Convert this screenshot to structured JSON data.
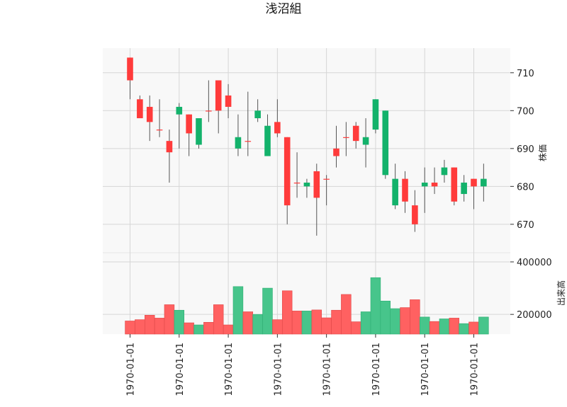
{
  "chart_data": {
    "type": "candlestick",
    "title": "浅沼組",
    "price_ylabel": "株価",
    "volume_ylabel": "出来高",
    "colors": {
      "up": "#ff3b3b",
      "down": "#13b26b",
      "up_volume": "#ff6161",
      "down_volume": "#47c58b",
      "grid": "#d6d6d6",
      "panel_bg": "#f8f8f8"
    },
    "price_ylim": [
      662.5,
      716.5
    ],
    "price_yticks": [
      670,
      680,
      690,
      700,
      710
    ],
    "volume_ylim": [
      125000,
      435000
    ],
    "volume_yticks": [
      200000,
      400000
    ],
    "volume_ytick_labels": [
      "200000",
      "400000"
    ],
    "xtick_indices": [
      0,
      5,
      10,
      15,
      20,
      25,
      30,
      35
    ],
    "xtick_labels": [
      "1970-01-01",
      "1970-01-01",
      "1970-01-01",
      "1970-01-01",
      "1970-01-01",
      "1970-01-01",
      "1970-01-01",
      "1970-01-01"
    ],
    "candles": [
      {
        "open": 708,
        "high": 714,
        "low": 703,
        "close": 714,
        "volume": 175000
      },
      {
        "open": 698,
        "high": 704,
        "low": 698,
        "close": 703,
        "volume": 180000
      },
      {
        "open": 697,
        "high": 704,
        "low": 692,
        "close": 701,
        "volume": 197000
      },
      {
        "open": 695,
        "high": 703,
        "low": 693,
        "close": 695,
        "volume": 186000
      },
      {
        "open": 689,
        "high": 695,
        "low": 681,
        "close": 692,
        "volume": 237000
      },
      {
        "open": 701,
        "high": 702,
        "low": 690,
        "close": 699,
        "volume": 216000
      },
      {
        "open": 694,
        "high": 699,
        "low": 688,
        "close": 699,
        "volume": 168000
      },
      {
        "open": 698,
        "high": 698,
        "low": 690,
        "close": 691,
        "volume": 160000
      },
      {
        "open": 700,
        "high": 708,
        "low": 697,
        "close": 700,
        "volume": 170000
      },
      {
        "open": 700,
        "high": 708,
        "low": 694,
        "close": 708,
        "volume": 237000
      },
      {
        "open": 701,
        "high": 707,
        "low": 698,
        "close": 704,
        "volume": 160000
      },
      {
        "open": 693,
        "high": 699,
        "low": 688,
        "close": 690,
        "volume": 306000
      },
      {
        "open": 692,
        "high": 705,
        "low": 688,
        "close": 692,
        "volume": 210000
      },
      {
        "open": 700,
        "high": 703,
        "low": 697,
        "close": 698,
        "volume": 200000
      },
      {
        "open": 696,
        "high": 699,
        "low": 688,
        "close": 688,
        "volume": 300000
      },
      {
        "open": 694,
        "high": 703,
        "low": 693,
        "close": 697,
        "volume": 180000
      },
      {
        "open": 675,
        "high": 693,
        "low": 670,
        "close": 693,
        "volume": 290000
      },
      {
        "open": 681,
        "high": 689,
        "low": 677,
        "close": 681,
        "volume": 213000
      },
      {
        "open": 681,
        "high": 682,
        "low": 677,
        "close": 680,
        "volume": 213000
      },
      {
        "open": 677,
        "high": 686,
        "low": 667,
        "close": 684,
        "volume": 217000
      },
      {
        "open": 682,
        "high": 683,
        "low": 675,
        "close": 682,
        "volume": 187000
      },
      {
        "open": 688,
        "high": 696,
        "low": 685,
        "close": 690,
        "volume": 216000
      },
      {
        "open": 693,
        "high": 697,
        "low": 688,
        "close": 693,
        "volume": 276000
      },
      {
        "open": 692,
        "high": 697,
        "low": 690,
        "close": 696,
        "volume": 172000
      },
      {
        "open": 693,
        "high": 698,
        "low": 685,
        "close": 691,
        "volume": 210000
      },
      {
        "open": 703,
        "high": 703,
        "low": 694,
        "close": 695,
        "volume": 340000
      },
      {
        "open": 700,
        "high": 700,
        "low": 682,
        "close": 683,
        "volume": 251000
      },
      {
        "open": 682,
        "high": 686,
        "low": 674,
        "close": 675,
        "volume": 222000
      },
      {
        "open": 676,
        "high": 684,
        "low": 673,
        "close": 682,
        "volume": 226000
      },
      {
        "open": 670,
        "high": 679,
        "low": 668,
        "close": 675,
        "volume": 256000
      },
      {
        "open": 681,
        "high": 685,
        "low": 673,
        "close": 680,
        "volume": 190000
      },
      {
        "open": 680,
        "high": 685,
        "low": 678,
        "close": 681,
        "volume": 173000
      },
      {
        "open": 685,
        "high": 687,
        "low": 681,
        "close": 683,
        "volume": 183000
      },
      {
        "open": 676,
        "high": 685,
        "low": 675,
        "close": 685,
        "volume": 186000
      },
      {
        "open": 681,
        "high": 683,
        "low": 676,
        "close": 678,
        "volume": 165000
      },
      {
        "open": 680,
        "high": 682,
        "low": 674,
        "close": 682,
        "volume": 171000
      },
      {
        "open": 682,
        "high": 686,
        "low": 676,
        "close": 680,
        "volume": 190000
      }
    ]
  }
}
